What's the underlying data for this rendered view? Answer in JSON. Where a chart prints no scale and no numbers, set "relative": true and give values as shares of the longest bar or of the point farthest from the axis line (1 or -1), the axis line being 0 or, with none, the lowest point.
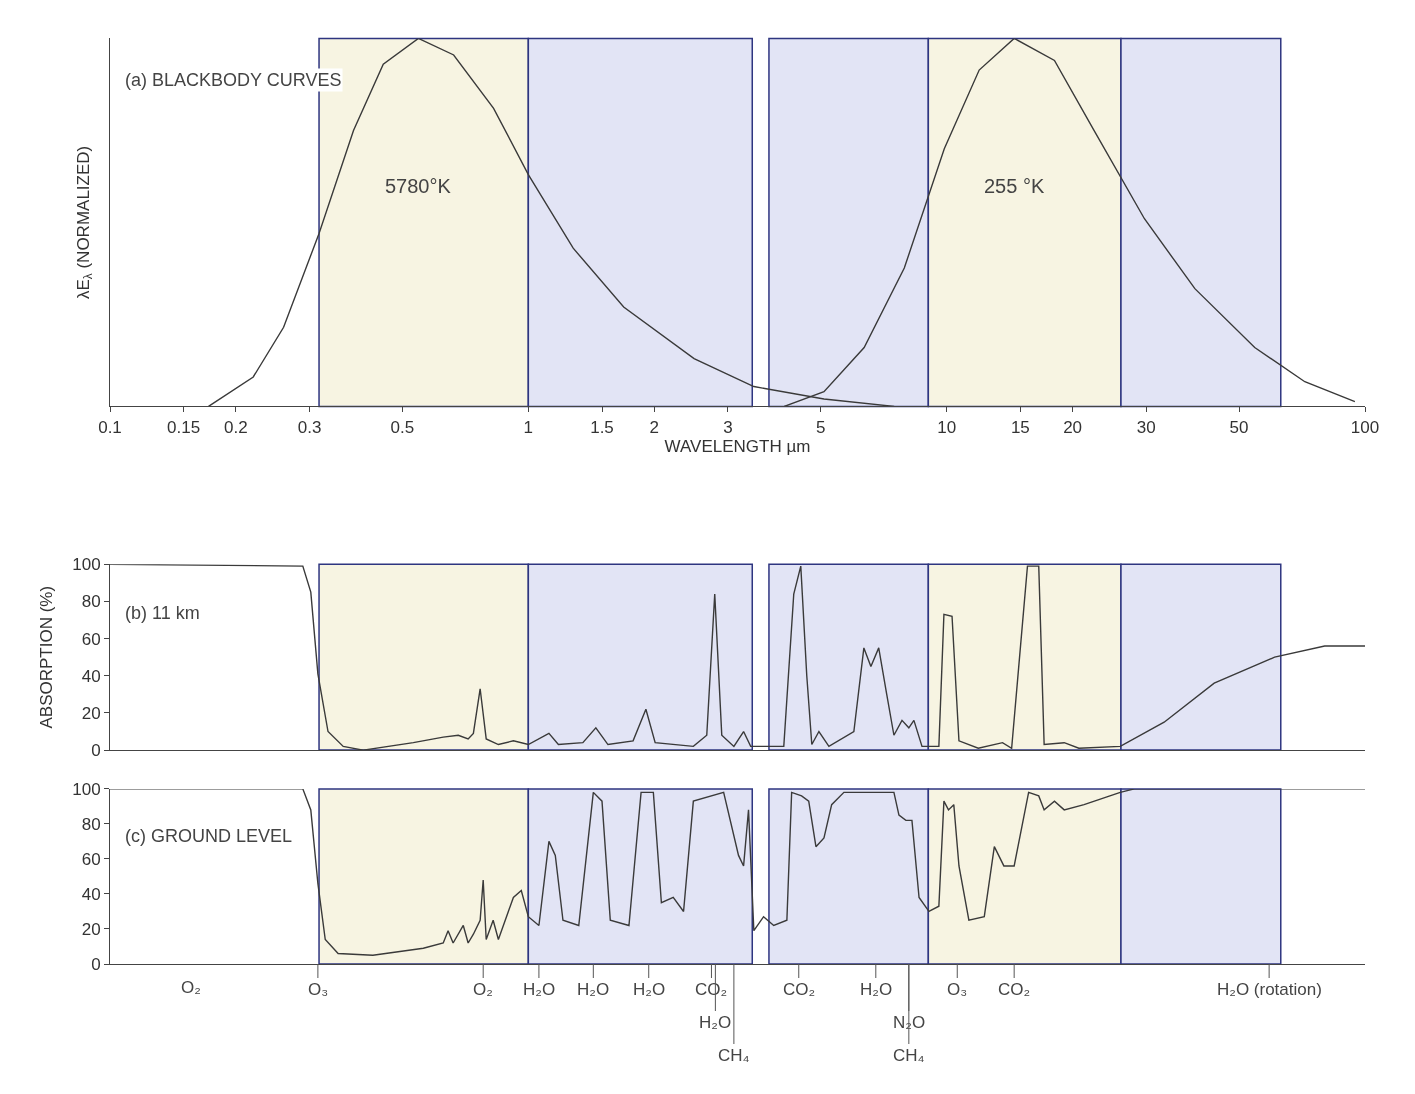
{
  "chart_data": [
    {
      "type": "line",
      "title": "(a) BLACKBODY CURVES",
      "ylabel": "λE$_{λ}$ (NORMALIZED)",
      "xlabel": "WAVELENGTH µm",
      "relative": true,
      "log": "x",
      "xlim": [
        0.1,
        100
      ],
      "xticks": [
        0.1,
        0.15,
        0.2,
        0.3,
        0.5,
        1,
        1.5,
        2,
        3,
        5,
        10,
        15,
        20,
        30,
        50,
        100
      ],
      "tick_labels": "x",
      "grid": false,
      "legend": false,
      "series": [
        {
          "name": "5780°K",
          "color": "#3a3a3a",
          "x": [
            0.172,
            0.22,
            0.26,
            0.316,
            0.382,
            0.45,
            0.546,
            0.663,
            0.826,
            1.0,
            1.28,
            1.69,
            2.49,
            3.46,
            5.09,
            7.49
          ],
          "values": [
            0,
            0.08,
            0.215,
            0.47,
            0.75,
            0.93,
            1.0,
            0.955,
            0.81,
            0.63,
            0.43,
            0.27,
            0.13,
            0.054,
            0.02,
            0
          ]
        },
        {
          "name": "255 °K",
          "color": "#3a3a3a",
          "x": [
            4.09,
            5.09,
            6.35,
            7.92,
            9.87,
            11.96,
            14.5,
            18.1,
            22.5,
            29.7,
            39.2,
            54.5,
            71.8,
            94.6
          ],
          "values": [
            0,
            0.04,
            0.16,
            0.376,
            0.7,
            0.914,
            1.0,
            0.94,
            0.75,
            0.51,
            0.32,
            0.16,
            0.067,
            0.013
          ]
        }
      ],
      "bands": [
        {
          "axis": "x",
          "from": 0.316,
          "to": 1.0,
          "color": "#f7f4e2"
        },
        {
          "axis": "x",
          "from": 1.0,
          "to": 3.43,
          "color": "#e2e4f5"
        },
        {
          "axis": "x",
          "from": 3.76,
          "to": 9.04,
          "color": "#e2e4f5"
        },
        {
          "axis": "x",
          "from": 9.04,
          "to": 26.1,
          "color": "#f7f4e2"
        },
        {
          "axis": "x",
          "from": 26.1,
          "to": 62.9,
          "color": "#e2e4f5"
        }
      ]
    },
    {
      "type": "line",
      "title": "(b) 11 km",
      "ylabel": "ABSORPTION (%)",
      "log": "x",
      "xlim": [
        0.1,
        100
      ],
      "xticks": [
        0.1,
        0.15,
        0.2,
        0.3,
        0.5,
        1,
        1.5,
        2,
        3,
        5,
        10,
        15,
        20,
        30,
        50,
        100
      ],
      "ylim": [
        0,
        100
      ],
      "yticks": [
        0,
        20,
        40,
        60,
        80,
        100
      ],
      "tick_labels": "y",
      "grid": false,
      "legend": false,
      "series": [
        {
          "color": "#3a3a3a",
          "x": [
            0.1,
            0.289,
            0.302,
            0.314,
            0.332,
            0.361,
            0.403,
            0.531,
            0.626,
            0.68,
            0.718,
            0.739,
            0.767,
            0.793,
            0.848,
            0.921,
            1.0,
            1.12,
            1.18,
            1.35,
            1.45,
            1.55,
            1.78,
            1.91,
            2.01,
            2.48,
            2.67,
            2.79,
            2.9,
            3.1,
            3.27,
            3.4,
            4.08,
            4.31,
            4.48,
            4.63,
            4.76,
            4.95,
            5.23,
            6.0,
            6.34,
            6.59,
            6.88,
            7.19,
            7.48,
            7.82,
            8.12,
            8.35,
            8.73,
            9.58,
            9.85,
            10.3,
            10.7,
            11.9,
            13.6,
            14.3,
            15.6,
            16.6,
            17.1,
            19.1,
            20.7,
            26.0,
            33.1,
            43.6,
            60.8,
            80.1,
            100
          ],
          "values": [
            100,
            99,
            85,
            41,
            10,
            2,
            0,
            4,
            7,
            8,
            6,
            9,
            33,
            6,
            3,
            5,
            3,
            9,
            3,
            4,
            12,
            3,
            5,
            22,
            4,
            2,
            8,
            84,
            8,
            2,
            10,
            2,
            2,
            84,
            99,
            40,
            3,
            10,
            2,
            10,
            55,
            45,
            55,
            30,
            8,
            16,
            12,
            16,
            2,
            2,
            73,
            72,
            5,
            1,
            4,
            1,
            99,
            99,
            3,
            4,
            1,
            2,
            15,
            36,
            50,
            56,
            56
          ]
        }
      ],
      "bands": [
        {
          "axis": "x",
          "from": 0.316,
          "to": 1.0,
          "color": "#f7f4e2"
        },
        {
          "axis": "x",
          "from": 1.0,
          "to": 3.43,
          "color": "#e2e4f5"
        },
        {
          "axis": "x",
          "from": 3.76,
          "to": 9.04,
          "color": "#e2e4f5"
        },
        {
          "axis": "x",
          "from": 9.04,
          "to": 26.1,
          "color": "#f7f4e2"
        },
        {
          "axis": "x",
          "from": 26.1,
          "to": 62.9,
          "color": "#e2e4f5"
        }
      ]
    },
    {
      "type": "line",
      "title": "(c) GROUND LEVEL",
      "log": "x",
      "xlim": [
        0.1,
        100
      ],
      "xticks": [
        0.1,
        0.15,
        0.2,
        0.3,
        0.5,
        1,
        1.5,
        2,
        3,
        5,
        10,
        15,
        20,
        30,
        50,
        100
      ],
      "ylim": [
        0,
        100
      ],
      "yticks": [
        0,
        20,
        40,
        60,
        80,
        100
      ],
      "tick_labels": "y",
      "grid": false,
      "legend": false,
      "series": [
        {
          "color": "#3a3a3a",
          "x": [
            0.1,
            0.289,
            0.302,
            0.314,
            0.327,
            0.351,
            0.425,
            0.561,
            0.626,
            0.643,
            0.661,
            0.699,
            0.718,
            0.739,
            0.767,
            0.78,
            0.793,
            0.824,
            0.848,
            0.921,
            0.962,
            1.0,
            1.06,
            1.12,
            1.16,
            1.21,
            1.32,
            1.43,
            1.5,
            1.57,
            1.74,
            1.86,
            1.99,
            2.08,
            2.22,
            2.35,
            2.48,
            2.93,
            3.18,
            3.27,
            3.36,
            3.46,
            3.65,
            3.86,
            4.15,
            4.26,
            4.5,
            4.68,
            4.87,
            5.09,
            5.31,
            5.68,
            7.48,
            7.69,
            7.99,
            8.26,
            8.59,
            9.07,
            9.58,
            9.85,
            10.1,
            10.4,
            10.7,
            11.3,
            12.3,
            13.0,
            13.7,
            14.5,
            15.7,
            16.6,
            17.1,
            18.1,
            19.1,
            21.3,
            26.0,
            28.1,
            100
          ],
          "values": [
            100,
            100,
            88,
            46,
            14,
            6,
            5,
            9,
            12,
            19,
            12,
            22,
            12,
            17,
            25,
            48,
            14,
            25,
            14,
            38,
            42,
            27,
            22,
            70,
            62,
            25,
            22,
            98,
            93,
            25,
            22,
            98,
            98,
            35,
            38,
            30,
            93,
            98,
            62,
            56,
            88,
            19,
            27,
            22,
            25,
            98,
            96,
            93,
            67,
            72,
            91,
            98,
            98,
            85,
            82,
            82,
            38,
            30,
            33,
            93,
            88,
            91,
            56,
            25,
            27,
            67,
            56,
            56,
            98,
            96,
            88,
            93,
            88,
            91,
            98,
            100,
            100
          ]
        }
      ],
      "bands": [
        {
          "axis": "x",
          "from": 0.316,
          "to": 1.0,
          "color": "#f7f4e2"
        },
        {
          "axis": "x",
          "from": 1.0,
          "to": 3.43,
          "color": "#e2e4f5"
        },
        {
          "axis": "x",
          "from": 3.76,
          "to": 9.04,
          "color": "#e2e4f5"
        },
        {
          "axis": "x",
          "from": 9.04,
          "to": 26.1,
          "color": "#f7f4e2"
        },
        {
          "axis": "x",
          "from": 26.1,
          "to": 62.9,
          "color": "#e2e4f5"
        }
      ],
      "annotations": [
        "O₂",
        {
          "text": "O₃",
          "x": 0.314,
          "y": 0
        },
        {
          "text": "O₂",
          "x": 0.78,
          "y": 0
        },
        {
          "text": "H₂O",
          "x": 1.06,
          "y": 0
        },
        {
          "text": "H₂O",
          "x": 1.43,
          "y": 0
        },
        {
          "text": "H₂O",
          "x": 1.94,
          "y": 0
        },
        {
          "text": "CO₂",
          "x": 2.74,
          "y": 0
        },
        {
          "text": "H₂O",
          "x": 2.8,
          "y": 0
        },
        {
          "text": "CH₄",
          "x": 3.1,
          "y": 0
        },
        {
          "text": "CO₂",
          "x": 4.43,
          "y": 0
        },
        {
          "text": "H₂O",
          "x": 6.77,
          "y": 0
        },
        {
          "text": "N₂O",
          "x": 8.12,
          "y": 0
        },
        {
          "text": "CH₄",
          "x": 8.12,
          "y": 0
        },
        {
          "text": "O₃",
          "x": 10.6,
          "y": 0
        },
        {
          "text": "CO₂",
          "x": 14.5,
          "y": 0
        },
        {
          "text": "H₂O (rotation)",
          "x": 59,
          "y": 0
        }
      ]
    }
  ]
}
